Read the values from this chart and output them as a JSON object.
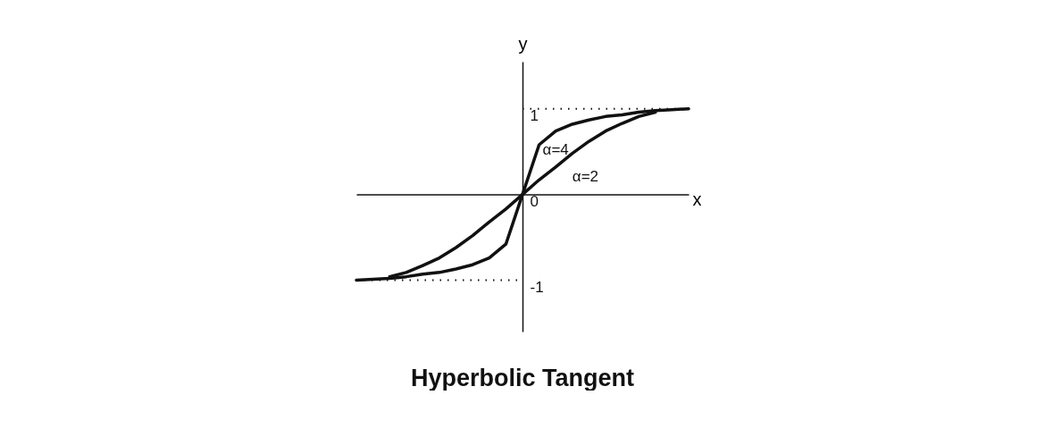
{
  "chart_data": {
    "type": "line",
    "title": "Hyperbolic Tangent",
    "xlabel": "x",
    "ylabel": "y",
    "categories": [
      null,
      null,
      null,
      null,
      null,
      null,
      null,
      null,
      null,
      null,
      null,
      null,
      null,
      null,
      null,
      null,
      null,
      null,
      null,
      null,
      null
    ],
    "series": [
      {
        "name": "α=4",
        "color": "#111111",
        "values": [
          -1,
          -0.99,
          -0.98,
          -0.96,
          -0.93,
          -0.91,
          -0.87,
          -0.82,
          -0.74,
          -0.58,
          0,
          0.58,
          0.74,
          0.82,
          0.87,
          0.91,
          0.93,
          0.96,
          0.98,
          0.99,
          1
        ]
      },
      {
        "name": "α=2",
        "color": "#111111",
        "values": [
          null,
          null,
          -0.96,
          -0.91,
          -0.83,
          -0.74,
          -0.62,
          -0.48,
          -0.32,
          -0.17,
          0,
          0.17,
          0.32,
          0.48,
          0.62,
          0.74,
          0.83,
          0.91,
          0.96,
          null,
          null
        ]
      }
    ],
    "ylim": [
      -1.6,
      1.55
    ],
    "yticks": [
      -1,
      0,
      1
    ],
    "tick_labels": "y",
    "ref_lines": [
      {
        "axis": "y",
        "value": 1,
        "line_style": "dotted",
        "color": "#111111"
      },
      {
        "axis": "y",
        "value": -1,
        "line_style": "dotted",
        "color": "#111111"
      }
    ]
  }
}
